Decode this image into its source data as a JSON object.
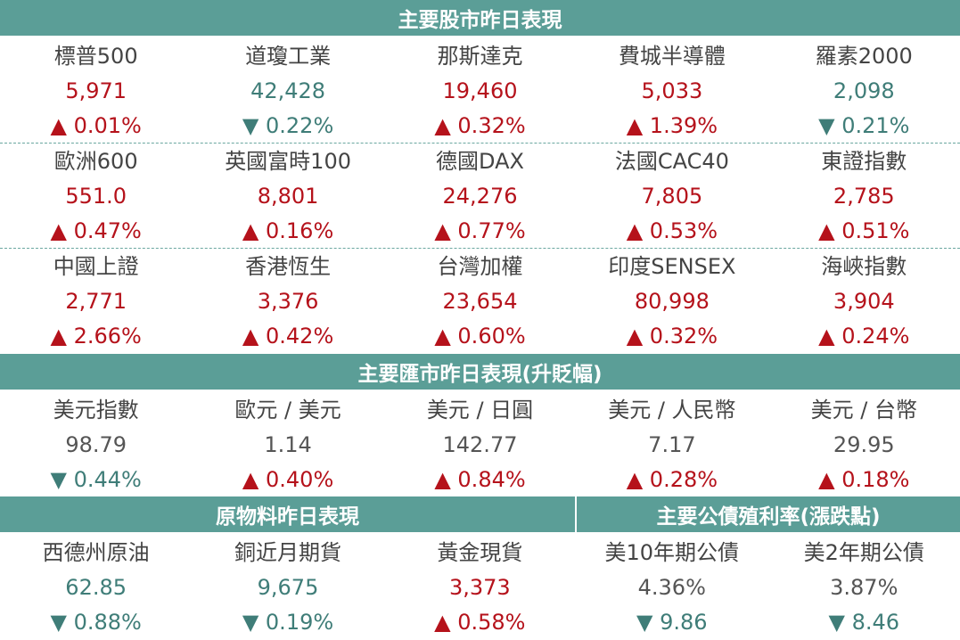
{
  "stocks": {
    "title": "主要股市昨日表現",
    "rows": [
      [
        {
          "name": "標普500",
          "value": "5,971",
          "change": "▲ 0.01%",
          "dir": "up"
        },
        {
          "name": "道瓊工業",
          "value": "42,428",
          "change": "▼ 0.22%",
          "dir": "down"
        },
        {
          "name": "那斯達克",
          "value": "19,460",
          "change": "▲ 0.32%",
          "dir": "up"
        },
        {
          "name": "費城半導體",
          "value": "5,033",
          "change": "▲ 1.39%",
          "dir": "up"
        },
        {
          "name": "羅素2000",
          "value": "2,098",
          "change": "▼ 0.21%",
          "dir": "down"
        }
      ],
      [
        {
          "name": "歐洲600",
          "value": "551.0",
          "change": "▲ 0.47%",
          "dir": "up"
        },
        {
          "name": "英國富時100",
          "value": "8,801",
          "change": "▲ 0.16%",
          "dir": "up"
        },
        {
          "name": "德國DAX",
          "value": "24,276",
          "change": "▲ 0.77%",
          "dir": "up"
        },
        {
          "name": "法國CAC40",
          "value": "7,805",
          "change": "▲ 0.53%",
          "dir": "up"
        },
        {
          "name": "東證指數",
          "value": "2,785",
          "change": "▲ 0.51%",
          "dir": "up"
        }
      ],
      [
        {
          "name": "中國上證",
          "value": "2,771",
          "change": "▲ 2.66%",
          "dir": "up"
        },
        {
          "name": "香港恆生",
          "value": "3,376",
          "change": "▲ 0.42%",
          "dir": "up"
        },
        {
          "name": "台灣加權",
          "value": "23,654",
          "change": "▲ 0.60%",
          "dir": "up"
        },
        {
          "name": "印度SENSEX",
          "value": "80,998",
          "change": "▲ 0.32%",
          "dir": "up"
        },
        {
          "name": "海峽指數",
          "value": "3,904",
          "change": "▲ 0.24%",
          "dir": "up"
        }
      ]
    ]
  },
  "fx": {
    "title": "主要匯市昨日表現(升貶幅)",
    "items": [
      {
        "name": "美元指數",
        "value": "98.79",
        "change": "▼ 0.44%",
        "dir": "down"
      },
      {
        "name": "歐元 / 美元",
        "value": "1.14",
        "change": "▲ 0.40%",
        "dir": "up"
      },
      {
        "name": "美元 / 日圓",
        "value": "142.77",
        "change": "▲ 0.84%",
        "dir": "up"
      },
      {
        "name": "美元 / 人民幣",
        "value": "7.17",
        "change": "▲ 0.28%",
        "dir": "up"
      },
      {
        "name": "美元 / 台幣",
        "value": "29.95",
        "change": "▲ 0.18%",
        "dir": "up"
      }
    ]
  },
  "commodities": {
    "title": "原物料昨日表現",
    "items": [
      {
        "name": "西德州原油",
        "value": "62.85",
        "change": "▼ 0.88%",
        "dir": "down"
      },
      {
        "name": "銅近月期貨",
        "value": "9,675",
        "change": "▼ 0.19%",
        "dir": "down"
      },
      {
        "name": "黃金現貨",
        "value": "3,373",
        "change": "▲ 0.58%",
        "dir": "up"
      }
    ]
  },
  "bonds": {
    "title": "主要公債殖利率(漲跌點)",
    "items": [
      {
        "name": "美10年期公債",
        "value": "4.36%",
        "change": "▼ 9.86",
        "dir": "down"
      },
      {
        "name": "美2年期公債",
        "value": "3.87%",
        "change": "▼ 8.46",
        "dir": "down"
      }
    ]
  },
  "colors": {
    "header_bg": "#5b9e97",
    "up": "#b5121b",
    "down": "#3f7d78",
    "neutral": "#555555"
  }
}
